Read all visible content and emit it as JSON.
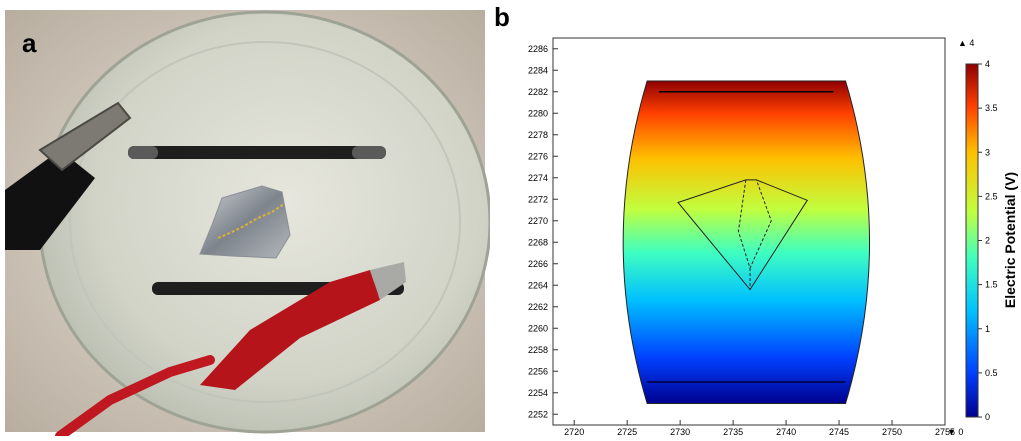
{
  "panels": {
    "a": {
      "label": "a"
    },
    "b": {
      "label": "b"
    }
  },
  "chart_data": {
    "type": "heatmap",
    "title": "",
    "xlabel": "",
    "ylabel": "",
    "x_ticks": [
      2720,
      2725,
      2730,
      2735,
      2740,
      2745,
      2750,
      2755
    ],
    "y_ticks": [
      2252,
      2254,
      2256,
      2258,
      2260,
      2262,
      2264,
      2266,
      2268,
      2270,
      2272,
      2274,
      2276,
      2278,
      2280,
      2282,
      2284,
      2286
    ],
    "xlim": [
      2718,
      2755
    ],
    "ylim": [
      2251,
      2287
    ],
    "colorbar": {
      "label": "Electric Potential (V)",
      "ticks": [
        0,
        0.5,
        1,
        1.5,
        2,
        2.5,
        3,
        3.5,
        4
      ],
      "range": [
        0,
        4
      ],
      "max_marker": "▲ 4",
      "min_marker": "▼ 0",
      "colormap": "rainbow",
      "colors": [
        "#00008f",
        "#0040ff",
        "#00c0ff",
        "#40ffc0",
        "#c0ff40",
        "#ffc000",
        "#ff4000",
        "#8f0000"
      ]
    },
    "domain": {
      "x_range": [
        2725,
        2747.5
      ],
      "y_range": [
        2253,
        2283
      ],
      "electrode_top_y": 2282,
      "electrode_bottom_y": 2255
    },
    "grid": false
  }
}
